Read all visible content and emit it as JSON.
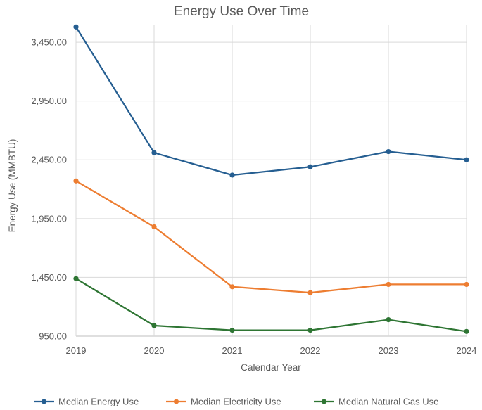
{
  "chart_data": {
    "type": "line",
    "title": "Energy Use Over Time",
    "xlabel": "Calendar Year",
    "ylabel": "Energy Use (MMBTU)",
    "categories": [
      "2019",
      "2020",
      "2021",
      "2022",
      "2023",
      "2024"
    ],
    "ylim": [
      950,
      3600
    ],
    "yticks": [
      950,
      1450,
      1950,
      2450,
      2950,
      3450
    ],
    "ytick_labels": [
      "950.00",
      "1,450.00",
      "1,950.00",
      "2,450.00",
      "2,950.00",
      "3,450.00"
    ],
    "grid": true,
    "legend_position": "bottom",
    "series": [
      {
        "name": "Median Energy Use",
        "color": "#255e91",
        "values": [
          3580,
          2510,
          2320,
          2390,
          2520,
          2450
        ]
      },
      {
        "name": "Median Electricity Use",
        "color": "#ed7d31",
        "values": [
          2270,
          1880,
          1370,
          1320,
          1390,
          1390
        ]
      },
      {
        "name": "Median Natural Gas Use",
        "color": "#2e7533",
        "values": [
          1440,
          1040,
          1000,
          1000,
          1090,
          990
        ]
      }
    ]
  }
}
